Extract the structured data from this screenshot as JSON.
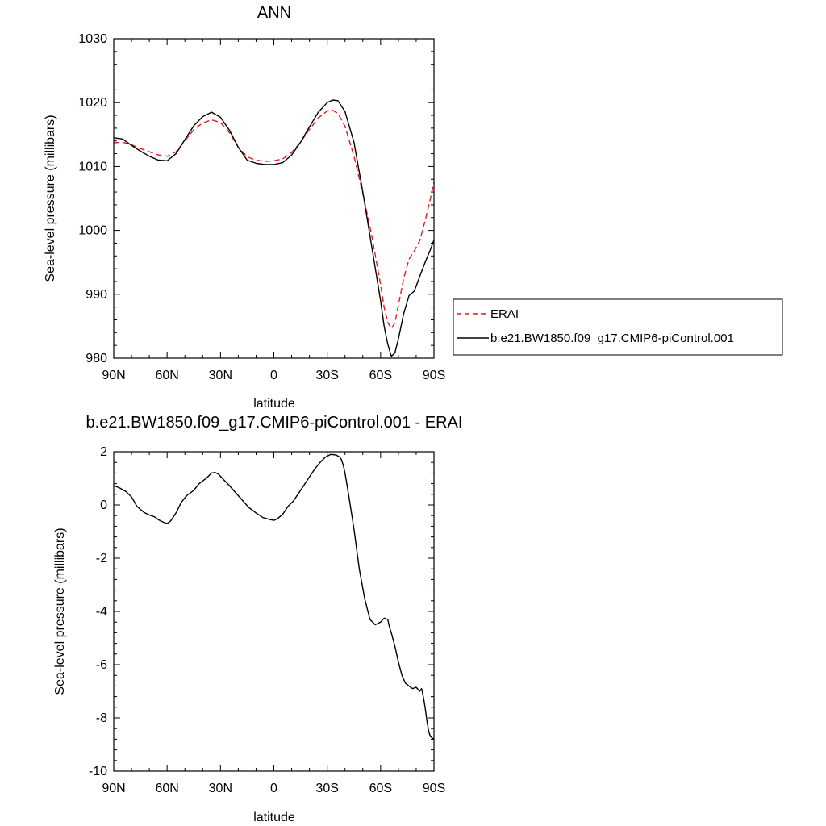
{
  "chart_data": [
    {
      "type": "line",
      "title": "ANN",
      "xlabel": "latitude",
      "ylabel": "Sea-level pressure (millibars)",
      "xlim": [
        90,
        -90
      ],
      "ylim": [
        980,
        1030
      ],
      "x_ticks": [
        90,
        60,
        30,
        0,
        -30,
        -60,
        -90
      ],
      "x_tick_labels": [
        "90N",
        "60N",
        "30N",
        "0",
        "30S",
        "60S",
        "90S"
      ],
      "y_ticks": [
        980,
        990,
        1000,
        1010,
        1020,
        1030
      ],
      "y_tick_labels": [
        "980",
        "990",
        "1000",
        "1010",
        "1020",
        "1030"
      ],
      "legend": "right",
      "series": [
        {
          "name": "ERAI",
          "color": "#e31a1c",
          "dash": true,
          "x": [
            90,
            85,
            80,
            75,
            70,
            65,
            60,
            55,
            50,
            45,
            40,
            35,
            30,
            25,
            20,
            15,
            10,
            5,
            0,
            -5,
            -10,
            -15,
            -20,
            -25,
            -30,
            -33,
            -36,
            -40,
            -45,
            -50,
            -55,
            -60,
            -62,
            -64,
            -66,
            -68,
            -70,
            -73,
            -76,
            -79,
            -82,
            -85,
            -88,
            -90
          ],
          "y": [
            1013.7,
            1013.8,
            1013.4,
            1012.8,
            1012.3,
            1011.8,
            1011.6,
            1012.3,
            1014.0,
            1015.8,
            1016.8,
            1017.3,
            1016.9,
            1015.3,
            1013.0,
            1011.5,
            1011.0,
            1010.8,
            1010.9,
            1011.2,
            1012.2,
            1013.8,
            1015.8,
            1017.6,
            1018.7,
            1018.8,
            1018.3,
            1016.3,
            1011.6,
            1005.8,
            999.2,
            991.5,
            988.0,
            985.6,
            984.6,
            985.5,
            988.3,
            992.5,
            995.5,
            996.8,
            998.4,
            1001.5,
            1005.0,
            1007.5
          ]
        },
        {
          "name": "b.e21.BW1850.f09_g17.CMIP6-piControl.001",
          "color": "#000000",
          "dash": false,
          "x": [
            90,
            85,
            80,
            75,
            70,
            65,
            60,
            55,
            50,
            45,
            40,
            35,
            30,
            25,
            20,
            15,
            10,
            5,
            0,
            -5,
            -10,
            -15,
            -20,
            -25,
            -30,
            -33,
            -36,
            -40,
            -45,
            -50,
            -55,
            -60,
            -62,
            -64,
            -66,
            -68,
            -70,
            -73,
            -76,
            -79,
            -82,
            -85,
            -88,
            -90
          ],
          "y": [
            1014.5,
            1014.3,
            1013.3,
            1012.4,
            1011.6,
            1011.0,
            1010.9,
            1012.0,
            1014.2,
            1016.4,
            1017.8,
            1018.5,
            1017.7,
            1015.7,
            1013.0,
            1011.0,
            1010.5,
            1010.3,
            1010.3,
            1010.6,
            1011.8,
            1013.8,
            1016.2,
            1018.5,
            1020.0,
            1020.4,
            1020.3,
            1018.6,
            1013.8,
            1006.0,
            997.5,
            989.0,
            985.0,
            982.2,
            980.3,
            980.8,
            983.0,
            987.0,
            989.8,
            990.5,
            992.8,
            995.0,
            997.0,
            998.5
          ]
        }
      ]
    },
    {
      "type": "line",
      "title": "b.e21.BW1850.f09_g17.CMIP6-piControl.001 - ERAI",
      "xlabel": "latitude",
      "ylabel": "Sea-level pressure (millibars)",
      "xlim": [
        90,
        -90
      ],
      "ylim": [
        -10,
        2
      ],
      "x_ticks": [
        90,
        60,
        30,
        0,
        -30,
        -60,
        -90
      ],
      "x_tick_labels": [
        "90N",
        "60N",
        "30N",
        "0",
        "30S",
        "60S",
        "90S"
      ],
      "y_ticks": [
        -10,
        -8,
        -6,
        -4,
        -2,
        0,
        2
      ],
      "y_tick_labels": [
        "-10",
        "-8",
        "-6",
        "-4",
        "-2",
        "0",
        "2"
      ],
      "series": [
        {
          "color": "#000000",
          "dash": false,
          "x": [
            90,
            87,
            83,
            80,
            77,
            73,
            70,
            67,
            65,
            62,
            60,
            58,
            55,
            52,
            49,
            45,
            42,
            38,
            35,
            33,
            31,
            29,
            26,
            22,
            18,
            14,
            10,
            6,
            2,
            0,
            -2,
            -5,
            -8,
            -11,
            -14,
            -17,
            -20,
            -23,
            -26,
            -29,
            -32,
            -35,
            -37,
            -38,
            -39,
            -40,
            -42,
            -45,
            -48,
            -51,
            -54,
            -57,
            -60,
            -62,
            -64,
            -65,
            -66,
            -68,
            -70,
            -72,
            -74,
            -76,
            -78,
            -80,
            -82,
            -83,
            -84,
            -85,
            -86,
            -87,
            -88,
            -89,
            -90
          ],
          "y": [
            0.72,
            0.65,
            0.5,
            0.3,
            -0.05,
            -0.28,
            -0.38,
            -0.45,
            -0.55,
            -0.65,
            -0.7,
            -0.6,
            -0.3,
            0.1,
            0.35,
            0.55,
            0.8,
            1.0,
            1.2,
            1.22,
            1.15,
            1.0,
            0.8,
            0.5,
            0.2,
            -0.1,
            -0.3,
            -0.48,
            -0.55,
            -0.58,
            -0.52,
            -0.35,
            -0.05,
            0.15,
            0.45,
            0.75,
            1.05,
            1.35,
            1.6,
            1.8,
            1.9,
            1.88,
            1.8,
            1.7,
            1.5,
            1.2,
            0.4,
            -0.9,
            -2.4,
            -3.5,
            -4.3,
            -4.5,
            -4.4,
            -4.25,
            -4.3,
            -4.6,
            -4.8,
            -5.3,
            -5.9,
            -6.4,
            -6.7,
            -6.8,
            -6.9,
            -6.85,
            -7.0,
            -6.9,
            -7.2,
            -7.6,
            -8.1,
            -8.5,
            -8.7,
            -8.75,
            -8.8
          ]
        }
      ]
    }
  ]
}
